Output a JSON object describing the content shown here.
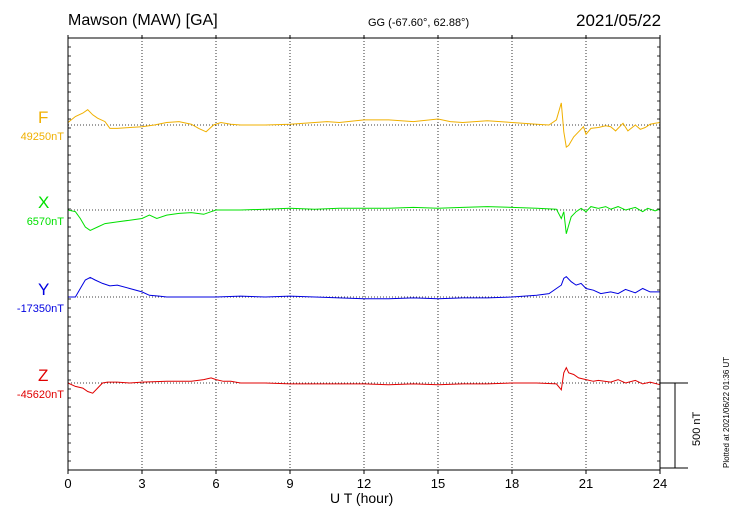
{
  "header": {
    "station": "Mawson (MAW)  [GA]",
    "coords": "GG (-67.60°,  62.88°)",
    "date": "2021/05/22"
  },
  "footer": {
    "plotted": "Plotted at 2021/06/22 01:36 UT",
    "scale_label": "500 nT"
  },
  "colors": {
    "F": "#f0b000",
    "X": "#00e000",
    "Y": "#0000e0",
    "Z": "#e00000"
  },
  "chart_data": {
    "type": "line",
    "xlabel": "U T (hour)",
    "xlim": [
      0,
      24
    ],
    "xticks": [
      0,
      3,
      6,
      9,
      12,
      15,
      18,
      21,
      24
    ],
    "xtick_labels": [
      "0",
      "3",
      "6",
      "9",
      "12",
      "15",
      "18",
      "21",
      "24"
    ],
    "scale_bar_nT": 500,
    "series": [
      {
        "name": "F",
        "baseline_label": "49250nT",
        "baseline": 49250,
        "points": [
          [
            0,
            49265
          ],
          [
            0.3,
            49300
          ],
          [
            0.6,
            49320
          ],
          [
            0.8,
            49340
          ],
          [
            1.0,
            49310
          ],
          [
            1.2,
            49290
          ],
          [
            1.5,
            49270
          ],
          [
            1.7,
            49230
          ],
          [
            2.0,
            49230
          ],
          [
            2.5,
            49235
          ],
          [
            3.0,
            49240
          ],
          [
            3.5,
            49250
          ],
          [
            4.0,
            49265
          ],
          [
            4.5,
            49270
          ],
          [
            5.0,
            49255
          ],
          [
            5.3,
            49230
          ],
          [
            5.6,
            49210
          ],
          [
            5.9,
            49250
          ],
          [
            6.2,
            49265
          ],
          [
            6.6,
            49255
          ],
          [
            7.0,
            49250
          ],
          [
            8.0,
            49250
          ],
          [
            9.0,
            49255
          ],
          [
            10.0,
            49265
          ],
          [
            10.5,
            49270
          ],
          [
            11.0,
            49265
          ],
          [
            12.0,
            49280
          ],
          [
            13.0,
            49280
          ],
          [
            14.0,
            49270
          ],
          [
            15.0,
            49285
          ],
          [
            15.5,
            49270
          ],
          [
            16.0,
            49265
          ],
          [
            17.0,
            49275
          ],
          [
            18.0,
            49265
          ],
          [
            19.0,
            49255
          ],
          [
            19.5,
            49250
          ],
          [
            19.8,
            49280
          ],
          [
            20.0,
            49380
          ],
          [
            20.1,
            49210
          ],
          [
            20.2,
            49120
          ],
          [
            20.3,
            49130
          ],
          [
            20.5,
            49180
          ],
          [
            20.7,
            49210
          ],
          [
            20.9,
            49240
          ],
          [
            21.0,
            49195
          ],
          [
            21.2,
            49230
          ],
          [
            21.5,
            49235
          ],
          [
            21.8,
            49245
          ],
          [
            22.0,
            49240
          ],
          [
            22.2,
            49215
          ],
          [
            22.5,
            49260
          ],
          [
            22.7,
            49215
          ],
          [
            23.0,
            49250
          ],
          [
            23.2,
            49225
          ],
          [
            23.4,
            49235
          ],
          [
            23.6,
            49255
          ],
          [
            23.8,
            49260
          ],
          [
            24.0,
            49265
          ]
        ]
      },
      {
        "name": "X",
        "baseline_label": "6570nT",
        "baseline": 6570,
        "points": [
          [
            0,
            6570
          ],
          [
            0.3,
            6560
          ],
          [
            0.5,
            6520
          ],
          [
            0.7,
            6470
          ],
          [
            0.9,
            6450
          ],
          [
            1.2,
            6470
          ],
          [
            1.5,
            6490
          ],
          [
            2.0,
            6500
          ],
          [
            2.5,
            6510
          ],
          [
            3.0,
            6520
          ],
          [
            3.3,
            6540
          ],
          [
            3.6,
            6520
          ],
          [
            4.0,
            6540
          ],
          [
            4.5,
            6550
          ],
          [
            5.0,
            6555
          ],
          [
            5.5,
            6545
          ],
          [
            5.8,
            6560
          ],
          [
            6.0,
            6570
          ],
          [
            7.0,
            6570
          ],
          [
            8.0,
            6575
          ],
          [
            9.0,
            6580
          ],
          [
            10.0,
            6575
          ],
          [
            11.0,
            6580
          ],
          [
            12.0,
            6580
          ],
          [
            13.0,
            6580
          ],
          [
            14.0,
            6585
          ],
          [
            15.0,
            6580
          ],
          [
            16.0,
            6585
          ],
          [
            17.0,
            6590
          ],
          [
            18.0,
            6585
          ],
          [
            19.0,
            6580
          ],
          [
            19.8,
            6575
          ],
          [
            20.0,
            6520
          ],
          [
            20.1,
            6560
          ],
          [
            20.2,
            6430
          ],
          [
            20.3,
            6480
          ],
          [
            20.4,
            6530
          ],
          [
            20.6,
            6560
          ],
          [
            20.8,
            6580
          ],
          [
            21.0,
            6560
          ],
          [
            21.2,
            6590
          ],
          [
            21.5,
            6580
          ],
          [
            21.8,
            6590
          ],
          [
            22.0,
            6575
          ],
          [
            22.3,
            6590
          ],
          [
            22.6,
            6570
          ],
          [
            23.0,
            6585
          ],
          [
            23.3,
            6560
          ],
          [
            23.5,
            6580
          ],
          [
            23.8,
            6565
          ],
          [
            24.0,
            6575
          ]
        ]
      },
      {
        "name": "Y",
        "baseline_label": "-17350nT",
        "baseline": -17350,
        "points": [
          [
            0,
            -17350
          ],
          [
            0.3,
            -17350
          ],
          [
            0.5,
            -17300
          ],
          [
            0.7,
            -17250
          ],
          [
            0.9,
            -17235
          ],
          [
            1.1,
            -17250
          ],
          [
            1.4,
            -17270
          ],
          [
            1.7,
            -17285
          ],
          [
            2.0,
            -17280
          ],
          [
            2.5,
            -17300
          ],
          [
            3.0,
            -17320
          ],
          [
            3.3,
            -17340
          ],
          [
            3.7,
            -17345
          ],
          [
            4.0,
            -17350
          ],
          [
            5.0,
            -17350
          ],
          [
            6.0,
            -17350
          ],
          [
            7.0,
            -17345
          ],
          [
            8.0,
            -17350
          ],
          [
            9.0,
            -17345
          ],
          [
            10.0,
            -17350
          ],
          [
            11.0,
            -17355
          ],
          [
            12.0,
            -17360
          ],
          [
            13.0,
            -17360
          ],
          [
            14.0,
            -17355
          ],
          [
            15.0,
            -17360
          ],
          [
            16.0,
            -17355
          ],
          [
            17.0,
            -17355
          ],
          [
            18.0,
            -17350
          ],
          [
            19.0,
            -17340
          ],
          [
            19.5,
            -17330
          ],
          [
            20.0,
            -17280
          ],
          [
            20.1,
            -17240
          ],
          [
            20.2,
            -17230
          ],
          [
            20.4,
            -17260
          ],
          [
            20.6,
            -17280
          ],
          [
            20.8,
            -17270
          ],
          [
            21.0,
            -17300
          ],
          [
            21.3,
            -17310
          ],
          [
            21.6,
            -17330
          ],
          [
            22.0,
            -17320
          ],
          [
            22.3,
            -17330
          ],
          [
            22.6,
            -17305
          ],
          [
            23.0,
            -17325
          ],
          [
            23.3,
            -17300
          ],
          [
            23.6,
            -17320
          ],
          [
            24.0,
            -17320
          ]
        ]
      },
      {
        "name": "Z",
        "baseline_label": "-45620nT",
        "baseline": -45620,
        "points": [
          [
            0,
            -45620
          ],
          [
            0.3,
            -45640
          ],
          [
            0.6,
            -45650
          ],
          [
            0.8,
            -45670
          ],
          [
            1.0,
            -45680
          ],
          [
            1.2,
            -45650
          ],
          [
            1.4,
            -45620
          ],
          [
            1.6,
            -45615
          ],
          [
            2.0,
            -45615
          ],
          [
            2.5,
            -45620
          ],
          [
            3.0,
            -45615
          ],
          [
            4.0,
            -45610
          ],
          [
            5.0,
            -45610
          ],
          [
            5.5,
            -45600
          ],
          [
            5.8,
            -45590
          ],
          [
            6.0,
            -45600
          ],
          [
            6.3,
            -45610
          ],
          [
            6.6,
            -45610
          ],
          [
            7.0,
            -45620
          ],
          [
            8.0,
            -45620
          ],
          [
            9.0,
            -45625
          ],
          [
            10.0,
            -45625
          ],
          [
            11.0,
            -45625
          ],
          [
            12.0,
            -45625
          ],
          [
            13.0,
            -45630
          ],
          [
            14.0,
            -45625
          ],
          [
            15.0,
            -45630
          ],
          [
            16.0,
            -45625
          ],
          [
            17.0,
            -45625
          ],
          [
            18.0,
            -45620
          ],
          [
            19.0,
            -45620
          ],
          [
            19.8,
            -45625
          ],
          [
            20.0,
            -45660
          ],
          [
            20.1,
            -45560
          ],
          [
            20.2,
            -45530
          ],
          [
            20.3,
            -45560
          ],
          [
            20.5,
            -45570
          ],
          [
            20.7,
            -45590
          ],
          [
            21.0,
            -45600
          ],
          [
            21.3,
            -45610
          ],
          [
            21.5,
            -45605
          ],
          [
            22.0,
            -45615
          ],
          [
            22.3,
            -45600
          ],
          [
            22.6,
            -45620
          ],
          [
            23.0,
            -45605
          ],
          [
            23.3,
            -45625
          ],
          [
            23.6,
            -45615
          ],
          [
            24.0,
            -45630
          ]
        ]
      }
    ]
  }
}
